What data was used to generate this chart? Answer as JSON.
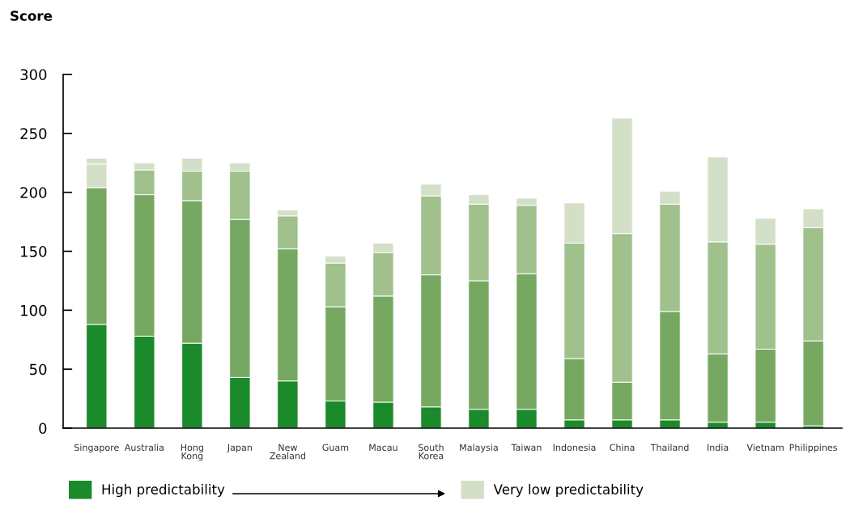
{
  "chart_data": {
    "type": "bar",
    "stacked": true,
    "ylabel": "Score",
    "categories": [
      "Singapore",
      "Australia",
      "Hong\nKong",
      "Japan",
      "New\nZealand",
      "Guam",
      "Macau",
      "South\nKorea",
      "Malaysia",
      "Taiwan",
      "Indonesia",
      "China",
      "Thailand",
      "India",
      "Vietnam",
      "Philippines"
    ],
    "series": [
      {
        "name": "High predictability",
        "color": "#1b8a2a",
        "values": [
          88,
          78,
          72,
          43,
          40,
          23,
          22,
          18,
          16,
          16,
          7,
          7,
          7,
          5,
          5,
          2
        ]
      },
      {
        "color": "#76a862",
        "values": [
          116,
          120,
          121,
          134,
          112,
          80,
          90,
          112,
          109,
          115,
          52,
          32,
          92,
          58,
          62,
          72
        ]
      },
      {
        "color": "#a0c08c",
        "values": [
          null,
          21,
          25,
          41,
          28,
          37,
          37,
          67,
          65,
          58,
          98,
          126,
          91,
          95,
          89,
          96
        ]
      },
      {
        "name": "Very low predictability",
        "color": "#d3dfc7",
        "values": [
          20,
          6,
          11,
          7,
          5,
          6,
          8,
          10,
          8,
          6,
          34,
          98,
          11,
          72,
          22,
          16
        ]
      },
      {
        "color": "#d3dfc7",
        "values": [
          5,
          null,
          null,
          null,
          null,
          null,
          null,
          null,
          null,
          null,
          null,
          null,
          null,
          null,
          null,
          null
        ]
      }
    ],
    "ylim": [
      0,
      300
    ],
    "yticks": [
      0,
      50,
      100,
      150,
      200,
      250,
      300
    ],
    "grid": false,
    "legend": "bottom"
  }
}
